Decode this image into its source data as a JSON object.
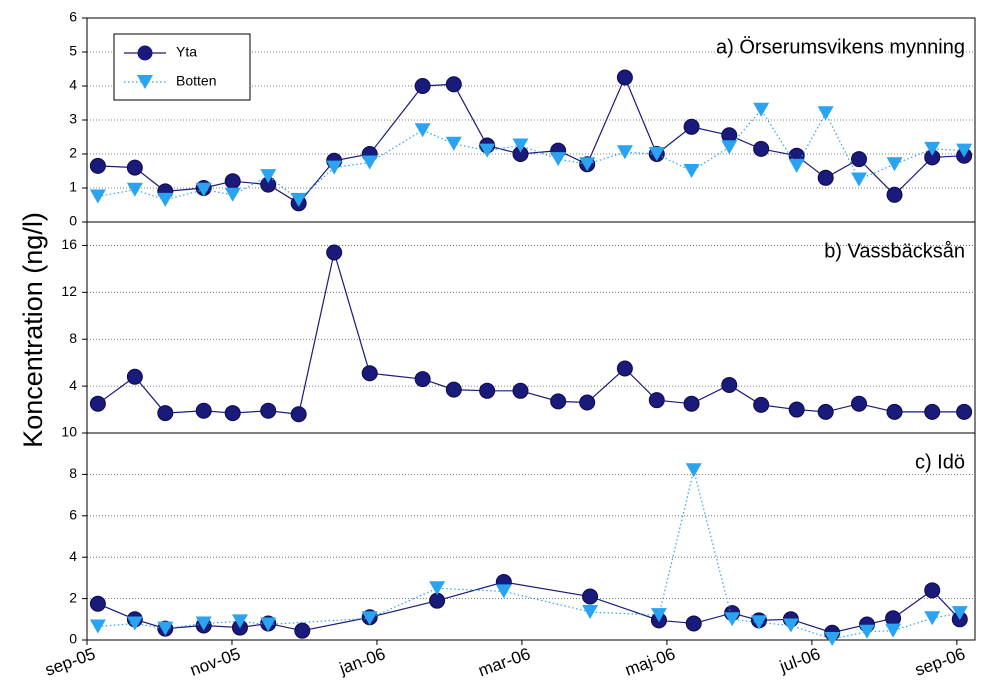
{
  "chart_data": [
    {
      "type": "line",
      "title": "a) Örserumsvikens mynning",
      "legend": "upper left",
      "grid": true,
      "xlim": [
        0,
        12.25
      ],
      "ylim": [
        0,
        6
      ],
      "yticks": [
        0,
        1,
        2,
        3,
        4,
        5,
        6
      ],
      "series": [
        {
          "name": "Yta",
          "color": "#1a1a7a",
          "marker": "circle",
          "line": "solid",
          "x": [
            0.15,
            0.66,
            1.08,
            1.61,
            2.01,
            2.5,
            2.92,
            3.41,
            3.9,
            4.63,
            5.06,
            5.52,
            5.98,
            6.5,
            6.9,
            7.42,
            7.86,
            8.34,
            8.86,
            9.3,
            9.79,
            10.19,
            10.65,
            11.14,
            11.66,
            12.1
          ],
          "values": [
            1.65,
            1.6,
            0.9,
            1.0,
            1.2,
            1.1,
            0.55,
            1.8,
            2.0,
            4.0,
            4.05,
            2.25,
            2.0,
            2.1,
            1.7,
            4.25,
            2.0,
            2.8,
            2.55,
            2.15,
            1.95,
            1.3,
            1.85,
            0.8,
            1.9,
            1.95
          ]
        },
        {
          "name": "Botten",
          "color": "#2aa3f0",
          "marker": "triangle",
          "line": "dotted",
          "x": [
            0.15,
            0.66,
            1.08,
            1.61,
            2.01,
            2.5,
            2.92,
            3.41,
            3.9,
            4.63,
            5.06,
            5.52,
            5.98,
            6.5,
            6.9,
            7.42,
            7.86,
            8.34,
            8.86,
            9.3,
            9.79,
            10.19,
            10.65,
            11.14,
            11.66,
            12.1
          ],
          "values": [
            0.75,
            0.95,
            0.65,
            0.95,
            0.8,
            1.35,
            0.65,
            1.6,
            1.75,
            2.7,
            2.3,
            2.1,
            2.25,
            1.85,
            1.7,
            2.05,
            2.0,
            1.5,
            2.2,
            3.3,
            1.65,
            3.2,
            1.25,
            1.7,
            2.15,
            2.1
          ]
        }
      ]
    },
    {
      "type": "line",
      "title": "b) Vassbäcksån",
      "ylabel": "Koncentration (ng/l)",
      "grid": true,
      "xlim": [
        0,
        12.25
      ],
      "ylim": [
        0,
        18
      ],
      "yticks": [
        4,
        8,
        12,
        16
      ],
      "series": [
        {
          "color": "#1a1a7a",
          "marker": "circle",
          "line": "solid",
          "x": [
            0.15,
            0.66,
            1.08,
            1.61,
            2.01,
            2.5,
            2.92,
            3.41,
            3.9,
            4.63,
            5.06,
            5.52,
            5.98,
            6.5,
            6.9,
            7.42,
            7.86,
            8.34,
            8.86,
            9.3,
            9.79,
            10.19,
            10.65,
            11.14,
            11.66,
            12.1
          ],
          "values": [
            2.5,
            4.8,
            1.7,
            1.9,
            1.7,
            1.9,
            1.6,
            15.4,
            5.1,
            4.6,
            3.7,
            3.6,
            3.6,
            2.7,
            2.6,
            5.5,
            2.8,
            2.5,
            4.1,
            2.4,
            2.0,
            1.8,
            2.5,
            1.8,
            1.8,
            1.8
          ]
        }
      ]
    },
    {
      "type": "line",
      "title": "c) Idö",
      "grid": true,
      "xlim": [
        0,
        12.25
      ],
      "ylim": [
        0,
        10
      ],
      "yticks": [
        0,
        2,
        4,
        6,
        8,
        10
      ],
      "xticks": [
        {
          "value": 0,
          "label": "sep-05"
        },
        {
          "value": 2,
          "label": "nov-05"
        },
        {
          "value": 4,
          "label": "jan-06"
        },
        {
          "value": 6,
          "label": "mar-06"
        },
        {
          "value": 8,
          "label": "maj-06"
        },
        {
          "value": 10,
          "label": "jul-06"
        },
        {
          "value": 12,
          "label": "sep-06"
        }
      ],
      "series": [
        {
          "color": "#1a1a7a",
          "marker": "circle",
          "line": "solid",
          "x": [
            0.15,
            0.66,
            1.08,
            1.61,
            2.11,
            2.5,
            2.97,
            3.9,
            4.83,
            5.75,
            6.94,
            7.89,
            8.37,
            8.9,
            9.27,
            9.71,
            10.28,
            10.76,
            11.12,
            11.66,
            12.04
          ],
          "values": [
            1.75,
            1.0,
            0.55,
            0.7,
            0.6,
            0.8,
            0.45,
            1.1,
            1.9,
            2.8,
            2.1,
            0.95,
            0.8,
            1.3,
            0.95,
            1.0,
            0.35,
            0.75,
            1.05,
            2.4,
            1.0
          ]
        },
        {
          "color": "#2aa3f0",
          "marker": "triangle",
          "line": "dotted",
          "x": [
            0.15,
            0.66,
            1.08,
            1.61,
            2.11,
            2.5,
            3.9,
            4.83,
            5.75,
            6.94,
            7.89,
            8.37,
            8.9,
            9.27,
            9.71,
            10.28,
            10.76,
            11.12,
            11.66,
            12.04
          ],
          "values": [
            0.65,
            0.8,
            0.55,
            0.8,
            0.9,
            0.75,
            1.05,
            2.5,
            2.35,
            1.35,
            1.2,
            8.2,
            1.0,
            0.85,
            0.7,
            0.05,
            0.4,
            0.45,
            1.05,
            1.3
          ]
        }
      ]
    }
  ]
}
